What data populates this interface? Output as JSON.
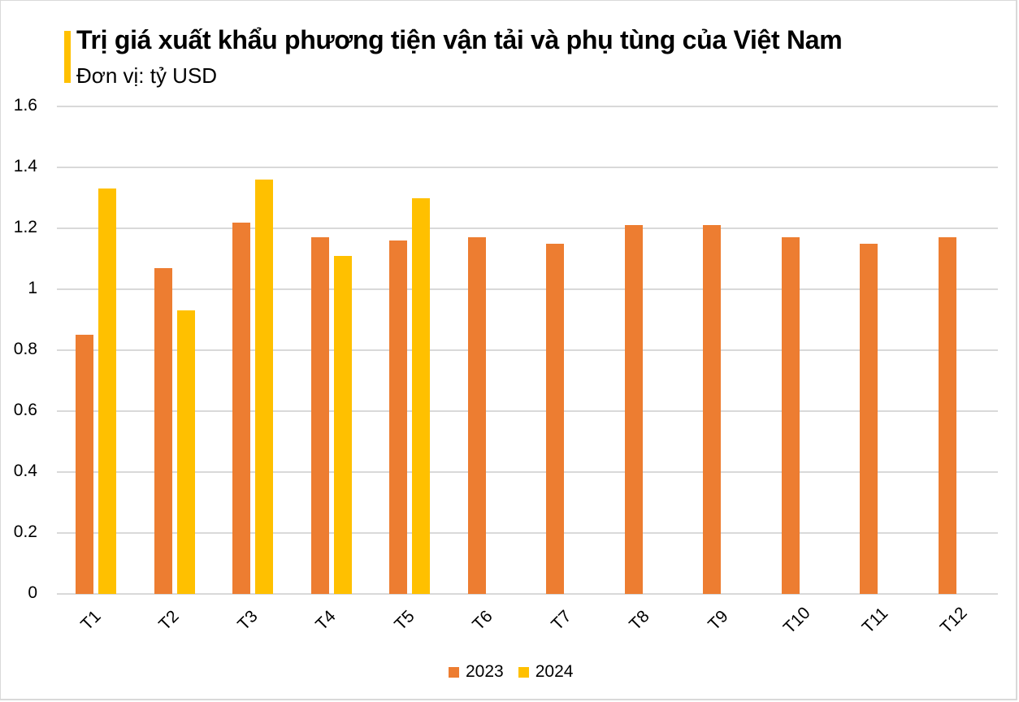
{
  "header": {
    "title": "Trị giá xuất khẩu phương tiện vận tải và phụ tùng của Việt Nam",
    "subtitle": "Đơn vị: tỷ USD",
    "accent_color": "#FFC000"
  },
  "chart_data": {
    "type": "bar",
    "title": "Trị giá xuất khẩu phương tiện vận tải và phụ tùng của Việt Nam",
    "subtitle": "Đơn vị: tỷ USD",
    "xlabel": "",
    "ylabel": "",
    "categories": [
      "T1",
      "T2",
      "T3",
      "T4",
      "T5",
      "T6",
      "T7",
      "T8",
      "T9",
      "T10",
      "T11",
      "T12"
    ],
    "series": [
      {
        "name": "2023",
        "color": "#ED7D31",
        "values": [
          0.85,
          1.07,
          1.22,
          1.17,
          1.16,
          1.17,
          1.15,
          1.21,
          1.21,
          1.17,
          1.15,
          1.17
        ]
      },
      {
        "name": "2024",
        "color": "#FFC000",
        "values": [
          1.33,
          0.93,
          1.36,
          1.11,
          1.3,
          null,
          null,
          null,
          null,
          null,
          null,
          null
        ]
      }
    ],
    "ylim": [
      0,
      1.6
    ],
    "yticks": [
      "0",
      "0.2",
      "0.4",
      "0.6",
      "0.8",
      "1",
      "1.2",
      "1.4",
      "1.6"
    ],
    "grid": true,
    "legend_position": "bottom"
  },
  "legend": {
    "items": [
      {
        "label": "2023",
        "color": "#ED7D31"
      },
      {
        "label": "2024",
        "color": "#FFC000"
      }
    ]
  }
}
